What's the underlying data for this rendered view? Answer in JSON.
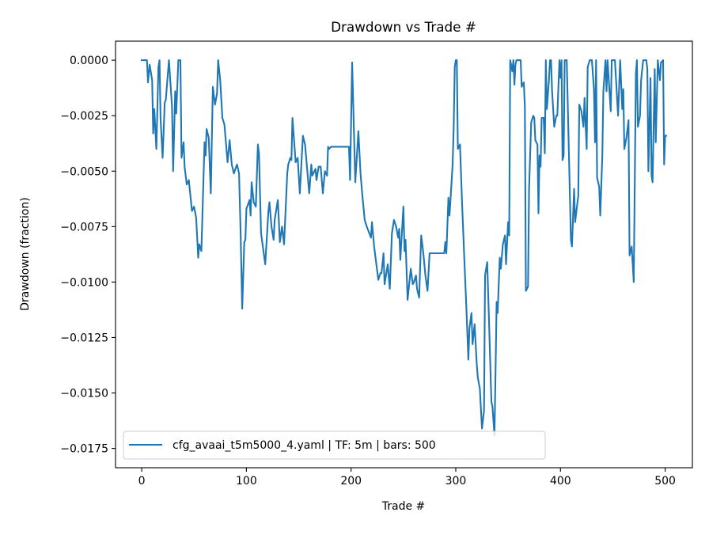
{
  "chart_data": {
    "type": "line",
    "title": "Drawdown vs Trade #",
    "xlabel": "Trade #",
    "ylabel": "Drawdown (fraction)",
    "xlim": [
      -25,
      526
    ],
    "ylim": [
      -0.01837,
      0.00086
    ],
    "xticks": [
      0,
      100,
      200,
      300,
      400,
      500
    ],
    "xtick_labels": [
      "0",
      "100",
      "200",
      "300",
      "400",
      "500"
    ],
    "yticks": [
      0,
      -0.0025,
      -0.005,
      -0.0075,
      -0.01,
      -0.0125,
      -0.015,
      -0.0175
    ],
    "ytick_labels": [
      "0.0000",
      "−0.0025",
      "−0.0050",
      "−0.0075",
      "−0.0100",
      "−0.0125",
      "−0.0150",
      "−0.0175"
    ],
    "grid": false,
    "legend_position": "lower-left",
    "series": [
      {
        "name": "cfg_avaai_t5m5000_4.yaml | TF: 5m | bars: 500",
        "color": "#1f77b4",
        "x": [
          0,
          5,
          6,
          7.6,
          10,
          11,
          12,
          14,
          16,
          17,
          18,
          20,
          22,
          23,
          26,
          29,
          30,
          32,
          33,
          35,
          37,
          38,
          40,
          41,
          43,
          45,
          48,
          50,
          52,
          54,
          55,
          57,
          60,
          61,
          62,
          64,
          66,
          68,
          70,
          72,
          73,
          75,
          77,
          79,
          82,
          84,
          86,
          88,
          91,
          93,
          94.5,
          96,
          98,
          99,
          100,
          103,
          104,
          105,
          107,
          109,
          111,
          112,
          114,
          118,
          121,
          122,
          124,
          126,
          127,
          130,
          132,
          134,
          136,
          139,
          140,
          142,
          143,
          144,
          147,
          149,
          151,
          154,
          156,
          160,
          162,
          163,
          166,
          167,
          169,
          171,
          173,
          175,
          177,
          178,
          179,
          181,
          198,
          199,
          201,
          204,
          207,
          209,
          211,
          213,
          215,
          219,
          220,
          222,
          226,
          228,
          229,
          231,
          232,
          235,
          237,
          239,
          241,
          243,
          245,
          246,
          247,
          250,
          251,
          252,
          254,
          257,
          259,
          260,
          262,
          263,
          265,
          267,
          269,
          271,
          273,
          275,
          277,
          289,
          290,
          291,
          293,
          294,
          297,
          298,
          299,
          300,
          301,
          302,
          304,
          306,
          308,
          310,
          312,
          313,
          315,
          316,
          318,
          320,
          321,
          323,
          325,
          327,
          328,
          330,
          332,
          334,
          335,
          337,
          338,
          339,
          340,
          342,
          343,
          345,
          347,
          348,
          350,
          351,
          352,
          354,
          355,
          356,
          357,
          358,
          362,
          363,
          365,
          366,
          367,
          369,
          370,
          372,
          374,
          375,
          376,
          378,
          379,
          380,
          381,
          382,
          384,
          385,
          386,
          387,
          389,
          390,
          391,
          392,
          394,
          396,
          397,
          399,
          400,
          401,
          402,
          403,
          404,
          406,
          410,
          411,
          413,
          414,
          417,
          418,
          420,
          422,
          423,
          425,
          426,
          428,
          430,
          432,
          433,
          434,
          435,
          437,
          438,
          440,
          441,
          443,
          444,
          445,
          448,
          449,
          452,
          455,
          457,
          459,
          460,
          461,
          463,
          465,
          466,
          468,
          470,
          472,
          473,
          474,
          476,
          477,
          479,
          482,
          483,
          484,
          486,
          487,
          488,
          490,
          491,
          493,
          495,
          496,
          498,
          499,
          500,
          501
        ],
        "y": [
          0,
          0,
          -0.001,
          -0.0002,
          -0.0009,
          -0.0033,
          -0.0022,
          -0.004,
          -0.0003,
          0,
          -0.0026,
          -0.0044,
          -0.0019,
          -0.0018,
          0,
          -0.0021,
          -0.005,
          -0.0014,
          -0.0024,
          0,
          0,
          -0.0044,
          -0.0037,
          -0.0048,
          -0.0056,
          -0.0054,
          -0.0068,
          -0.0066,
          -0.0071,
          -0.0089,
          -0.0083,
          -0.0086,
          -0.0037,
          -0.0043,
          -0.0031,
          -0.0035,
          -0.006,
          -0.0012,
          -0.002,
          -0.0015,
          0,
          -0.0009,
          -0.0026,
          -0.0029,
          -0.0046,
          -0.0036,
          -0.0047,
          -0.0051,
          -0.0047,
          -0.0051,
          -0.0078,
          -0.0112,
          -0.0082,
          -0.0081,
          -0.0067,
          -0.0063,
          -0.007,
          -0.0055,
          -0.0064,
          -0.0066,
          -0.0038,
          -0.0042,
          -0.0078,
          -0.0092,
          -0.0068,
          -0.0064,
          -0.0075,
          -0.0081,
          -0.0072,
          -0.0063,
          -0.0082,
          -0.0075,
          -0.0083,
          -0.0051,
          -0.0047,
          -0.0044,
          -0.0045,
          -0.0026,
          -0.0046,
          -0.0044,
          -0.006,
          -0.0034,
          -0.0038,
          -0.006,
          -0.0047,
          -0.0052,
          -0.0049,
          -0.0054,
          -0.0048,
          -0.0048,
          -0.006,
          -0.005,
          -0.0052,
          -0.0039,
          -0.004,
          -0.0039,
          -0.0039,
          -0.0054,
          -0.0001,
          -0.0055,
          -0.0032,
          -0.0051,
          -0.0062,
          -0.0072,
          -0.0075,
          -0.008,
          -0.0073,
          -0.0084,
          -0.0099,
          -0.0096,
          -0.0096,
          -0.0087,
          -0.0101,
          -0.0092,
          -0.0103,
          -0.0078,
          -0.0072,
          -0.0075,
          -0.008,
          -0.0076,
          -0.009,
          -0.0066,
          -0.0086,
          -0.0081,
          -0.0108,
          -0.0094,
          -0.0101,
          -0.01,
          -0.0097,
          -0.0103,
          -0.0107,
          -0.0079,
          -0.0087,
          -0.0097,
          -0.0104,
          -0.0087,
          -0.0087,
          -0.0087,
          -0.0082,
          -0.0087,
          -0.0062,
          -0.007,
          -0.0047,
          -0.0031,
          -0.0003,
          0,
          0,
          -0.004,
          -0.0038,
          -0.0064,
          -0.0088,
          -0.011,
          -0.0135,
          -0.0121,
          -0.0114,
          -0.0128,
          -0.0119,
          -0.0137,
          -0.0143,
          -0.0148,
          -0.0166,
          -0.0158,
          -0.0097,
          -0.0091,
          -0.0121,
          -0.0154,
          -0.0156,
          -0.0169,
          -0.0139,
          -0.0109,
          -0.0114,
          -0.0089,
          -0.0094,
          -0.0083,
          -0.0079,
          -0.0092,
          -0.0073,
          -0.0079,
          0,
          -0.0005,
          0,
          -0.0011,
          -0.0002,
          0,
          0,
          -0.0012,
          -0.001,
          -0.0021,
          -0.0104,
          -0.0102,
          -0.0058,
          -0.0028,
          -0.0025,
          -0.0026,
          -0.0036,
          -0.0038,
          -0.0069,
          -0.0043,
          -0.0048,
          -0.0026,
          -0.0026,
          -0.0042,
          0,
          -0.0022,
          -0.0009,
          0,
          0,
          -0.0014,
          -0.003,
          -0.0025,
          -0.0025,
          0,
          -0.0008,
          0,
          -0.0045,
          -0.0043,
          0,
          0,
          -0.0081,
          -0.0084,
          -0.0058,
          -0.0073,
          -0.0061,
          -0.002,
          -0.0023,
          -0.003,
          -0.0017,
          -0.004,
          -0.0003,
          0,
          0,
          -0.0013,
          -0.0037,
          0,
          -0.0053,
          -0.0057,
          -0.007,
          -0.0043,
          -0.0014,
          0,
          -0.0014,
          0,
          -0.0023,
          0,
          0,
          -0.0025,
          0,
          -0.0022,
          -0.0013,
          -0.004,
          -0.0035,
          -0.0027,
          -0.0088,
          -0.0084,
          -0.01,
          -0.0006,
          0,
          -0.003,
          -0.0025,
          -0.0009,
          0,
          0,
          -0.0004,
          -0.005,
          -0.0008,
          -0.0052,
          -0.0055,
          -0.0004,
          -0.0037,
          0,
          -0.0009,
          -0.0001,
          0,
          -0.0047,
          -0.0034,
          -0.0034
        ]
      }
    ]
  }
}
